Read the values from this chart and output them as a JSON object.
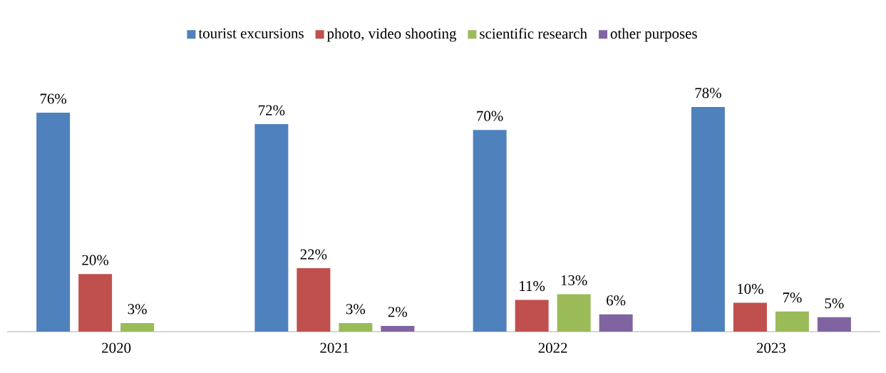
{
  "chart_data": {
    "type": "bar",
    "categories": [
      "2020",
      "2021",
      "2022",
      "2023"
    ],
    "series": [
      {
        "name": "tourist excursions",
        "color": "#4f81bd",
        "values": [
          76,
          72,
          70,
          78
        ],
        "value_labels": [
          "76%",
          "72%",
          "70%",
          "78%"
        ]
      },
      {
        "name": "photo, video shooting",
        "color": "#c0504d",
        "values": [
          20,
          22,
          11,
          10
        ],
        "value_labels": [
          "20%",
          "22%",
          "11%",
          "10%"
        ]
      },
      {
        "name": "scientific research",
        "color": "#9bbb59",
        "values": [
          3,
          3,
          13,
          7
        ],
        "value_labels": [
          "3%",
          "3%",
          "13%",
          "7%"
        ]
      },
      {
        "name": "other purposes",
        "color": "#8064a2",
        "values": [
          null,
          2,
          6,
          5
        ],
        "value_labels": [
          null,
          "2%",
          "6%",
          "5%"
        ]
      }
    ],
    "legend": "top"
  }
}
